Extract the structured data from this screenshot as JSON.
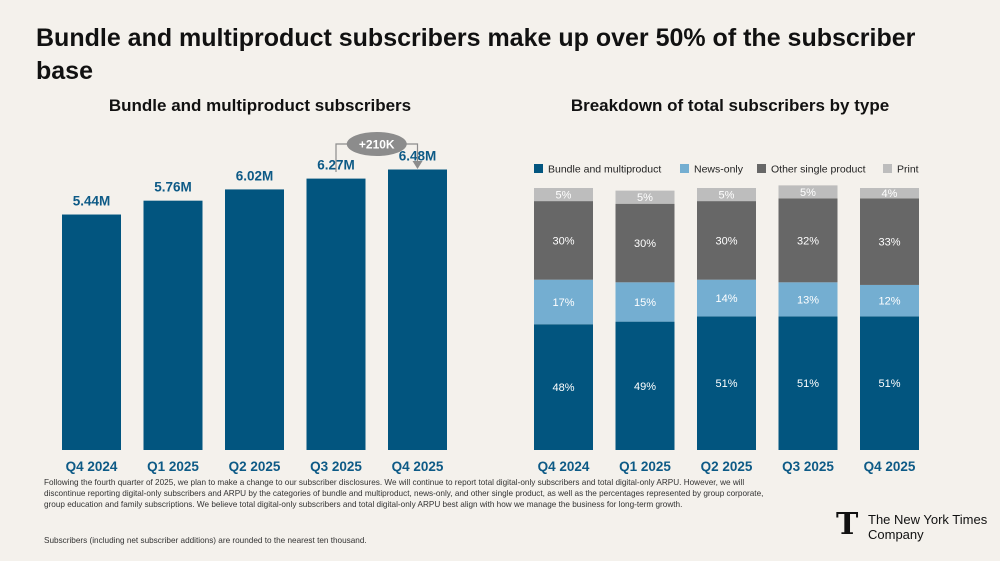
{
  "title": "Bundle and multiproduct subscribers make up over 50% of the subscriber base",
  "left_chart_title": "Bundle and multiproduct subscribers",
  "right_chart_title": "Breakdown of total subscribers by type",
  "footnote": "Following the fourth quarter of 2025, we plan to make a change to our subscriber disclosures. We will continue to report total digital-only subscribers and total digital-only ARPU. However, we will discontinue reporting digital-only subscribers and ARPU by the categories of bundle and multiproduct, news-only, and other single product, as well as the percentages represented by group corporate, group education and family subscriptions. We believe total digital-only subscribers and total digital-only ARPU best align with how we manage the business for long-term growth.",
  "footnote2": "Subscribers (including net subscriber additions) are rounded to the nearest ten thousand.",
  "logo": {
    "mark": "T",
    "line1": "The New York Times",
    "line2": "Company"
  },
  "colors": {
    "bundle": "#02557f",
    "news": "#74aed1",
    "other": "#676767",
    "print": "#bdbdbd",
    "axis_label": "#0d5a86",
    "bubble": "#8c8c8c"
  },
  "chart_data": [
    {
      "type": "bar",
      "title": "Bundle and multiproduct subscribers",
      "categories": [
        "Q4 2024",
        "Q1 2025",
        "Q2 2025",
        "Q3 2025",
        "Q4 2025"
      ],
      "values": [
        5.44,
        5.76,
        6.02,
        6.27,
        6.48
      ],
      "labels": [
        "5.44M",
        "5.76M",
        "6.02M",
        "6.27M",
        "6.48M"
      ],
      "unit": "M",
      "ylim": [
        0,
        7.0
      ],
      "annotation": {
        "text": "+210K",
        "from": "Q3 2025",
        "to": "Q4 2025"
      }
    },
    {
      "type": "stacked-bar",
      "title": "Breakdown of total subscribers by type",
      "categories": [
        "Q4 2024",
        "Q1 2025",
        "Q2 2025",
        "Q3 2025",
        "Q4 2025"
      ],
      "legend_position": "top",
      "series": [
        {
          "name": "Bundle and multiproduct",
          "color_key": "bundle",
          "values": [
            48,
            49,
            51,
            51,
            51
          ],
          "label_color": "#ffffff"
        },
        {
          "name": "News-only",
          "color_key": "news",
          "values": [
            17,
            15,
            14,
            13,
            12
          ],
          "label_color": "#ffffff"
        },
        {
          "name": "Other single product",
          "color_key": "other",
          "values": [
            30,
            30,
            30,
            32,
            33
          ],
          "label_color": "#ffffff"
        },
        {
          "name": "Print",
          "color_key": "print",
          "values": [
            5,
            5,
            5,
            5,
            4
          ],
          "label_color": "#ffffff"
        }
      ],
      "ylim": [
        0,
        100
      ]
    }
  ]
}
